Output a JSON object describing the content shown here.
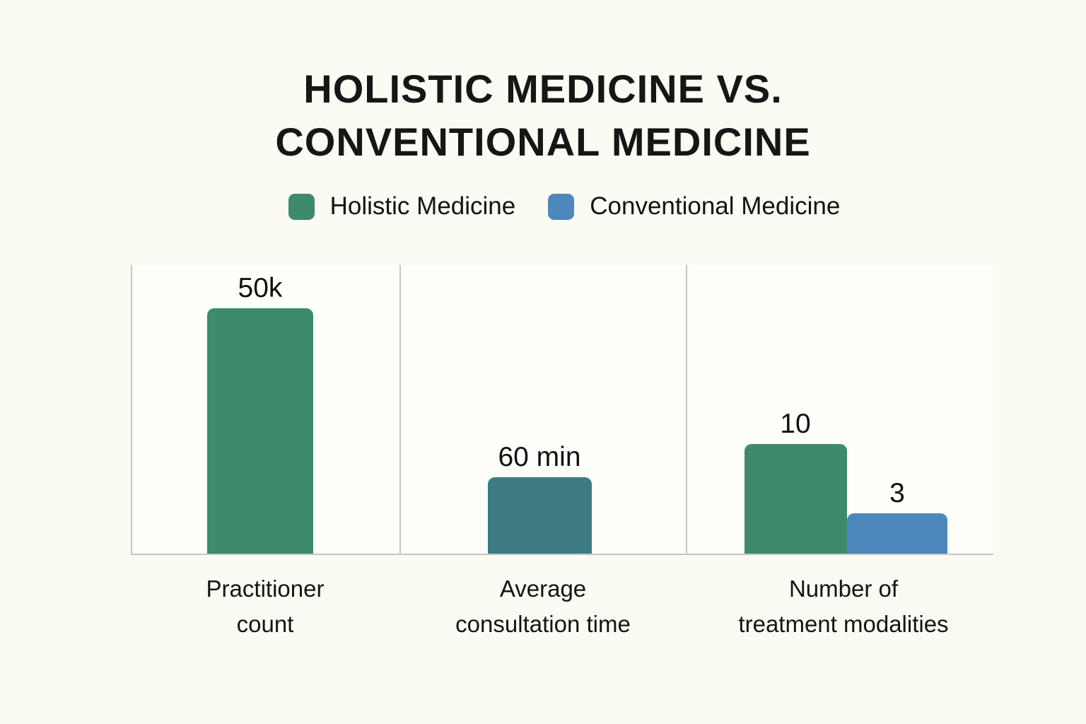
{
  "title": {
    "line1": "HOLISTIC MEDICINE VS.",
    "line2": "CONVENTIONAL MEDICINE"
  },
  "legend": {
    "items": [
      {
        "label": "Holistic Medicine",
        "color": "#3E8A6C"
      },
      {
        "label": "Conventional Medicine",
        "color": "#4C88BC"
      }
    ]
  },
  "colors": {
    "holistic_green": "#3E8A6C",
    "consultation_teal": "#3D7B83",
    "conventional_blue": "#4C88BC",
    "background": "#FBFAF3",
    "plot_background": "#FEFEFB",
    "gridline": "#C6C5C0",
    "text": "#141414"
  },
  "chart_data": {
    "type": "bar",
    "title": "HOLISTIC MEDICINE VS. CONVENTIONAL MEDICINE",
    "legend_entries": [
      "Holistic Medicine",
      "Conventional Medicine"
    ],
    "legend_position": "top-center",
    "grid": "vertical-separators-only",
    "axis_labels_shown": false,
    "groups": [
      {
        "category": "Practitioner count",
        "category_lines": [
          "Practitioner",
          "count"
        ],
        "bars": [
          {
            "series": "Holistic Medicine",
            "value": 50000,
            "label": "50k",
            "color": "#3E8A6C"
          }
        ]
      },
      {
        "category": "Average consultation time",
        "category_lines": [
          "Average",
          "consultation time"
        ],
        "bars": [
          {
            "series": "Holistic Medicine",
            "value": 60,
            "unit": "min",
            "label": "60 min",
            "color": "#3D7B83"
          }
        ]
      },
      {
        "category": "Number of treatment modalities",
        "category_lines": [
          "Number of",
          "treatment modalities"
        ],
        "bars": [
          {
            "series": "Holistic Medicine",
            "value": 10,
            "label": "10",
            "color": "#3E8A6C"
          },
          {
            "series": "Conventional Medicine",
            "value": 3,
            "label": "3",
            "color": "#4C88BC"
          }
        ]
      }
    ]
  }
}
